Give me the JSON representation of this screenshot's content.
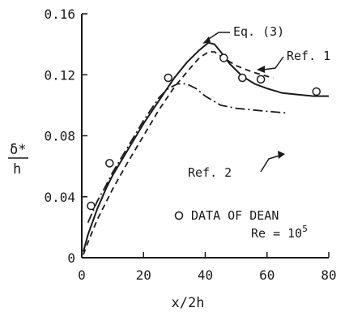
{
  "chart_data": {
    "type": "line",
    "xlabel": "x/2h",
    "ylabel_num": "δ*",
    "ylabel_den": "h",
    "xlim": [
      0,
      80
    ],
    "ylim": [
      0,
      0.16
    ],
    "x_ticks": [
      "0",
      "20",
      "40",
      "60",
      "80"
    ],
    "y_ticks": [
      "0",
      "0.04",
      "0.08",
      "0.12",
      "0.16"
    ],
    "grid": false,
    "legend_text": "DATA OF DEAN",
    "re_label": "Re = 10",
    "re_exponent": "5",
    "series": [
      {
        "name": "Eq. (3)",
        "style": "solid",
        "x": [
          0.5,
          2,
          5,
          8,
          10,
          15,
          20,
          25,
          30,
          34,
          38,
          41,
          43,
          45,
          48,
          52,
          56,
          60,
          65,
          70,
          75,
          80
        ],
        "y": [
          0.004,
          0.015,
          0.032,
          0.046,
          0.054,
          0.071,
          0.088,
          0.103,
          0.118,
          0.128,
          0.136,
          0.141,
          0.14,
          0.135,
          0.127,
          0.119,
          0.114,
          0.111,
          0.108,
          0.107,
          0.106,
          0.106
        ]
      },
      {
        "name": "Ref. 1",
        "style": "dashed",
        "x": [
          0.5,
          2,
          5,
          8,
          10,
          15,
          20,
          25,
          30,
          35,
          38,
          41,
          43,
          46,
          50,
          55,
          60,
          62
        ],
        "y": [
          0.002,
          0.01,
          0.025,
          0.037,
          0.045,
          0.063,
          0.08,
          0.097,
          0.112,
          0.124,
          0.131,
          0.135,
          0.135,
          0.131,
          0.126,
          0.122,
          0.119,
          0.118
        ]
      },
      {
        "name": "Ref. 2",
        "style": "dashdot",
        "x": [
          2,
          5,
          8,
          10,
          15,
          20,
          25,
          28,
          31,
          34,
          37,
          40,
          45,
          50,
          55,
          60,
          66
        ],
        "y": [
          0.023,
          0.037,
          0.048,
          0.056,
          0.073,
          0.09,
          0.105,
          0.111,
          0.114,
          0.114,
          0.111,
          0.106,
          0.1,
          0.098,
          0.097,
          0.096,
          0.095
        ]
      }
    ],
    "data_points": {
      "name": "DATA OF DEAN",
      "x": [
        3,
        9,
        28,
        46,
        52,
        58,
        76
      ],
      "y": [
        0.034,
        0.062,
        0.118,
        0.131,
        0.118,
        0.117,
        0.109
      ]
    }
  }
}
